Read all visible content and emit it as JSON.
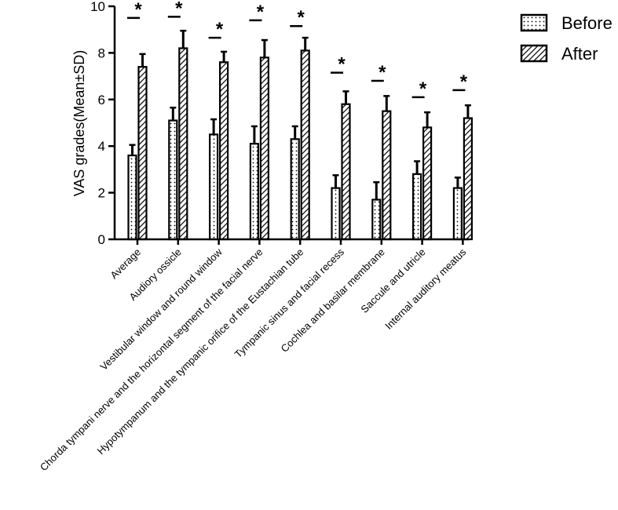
{
  "chart_data": {
    "type": "bar",
    "title": "",
    "xlabel": "",
    "ylabel": "VAS grades(Mean±SD)",
    "ylim": [
      0,
      10
    ],
    "yticks": [
      0,
      2,
      4,
      6,
      8,
      10
    ],
    "grid": false,
    "legend_placement": "top-right",
    "categories": [
      "Average",
      "Audiory ossicle",
      "Vestibular window and round window",
      "Chorda tympani nerve and the horizontal segment of the facial nerve",
      "Hypotympanum and the tympanic orifice of the Eustachian tube",
      "Tympanic sinus and facial recess",
      "Cochlea and basilar membrane",
      "Saccule and utricle",
      "Internal auditory meatus"
    ],
    "series": [
      {
        "name": "Before",
        "pattern": "dotted",
        "values": [
          3.6,
          5.1,
          4.5,
          4.1,
          4.3,
          2.2,
          1.7,
          2.8,
          2.2
        ],
        "sd": [
          0.45,
          0.55,
          0.65,
          0.75,
          0.55,
          0.55,
          0.75,
          0.55,
          0.45
        ]
      },
      {
        "name": "After",
        "pattern": "hatched",
        "values": [
          7.4,
          8.2,
          7.6,
          7.8,
          8.1,
          5.8,
          5.5,
          4.8,
          5.2
        ],
        "sd": [
          0.55,
          0.75,
          0.45,
          0.75,
          0.55,
          0.55,
          0.65,
          0.65,
          0.55
        ]
      }
    ],
    "significance": {
      "marker": "*",
      "levels": [
        9.5,
        9.55,
        8.65,
        9.4,
        9.15,
        7.15,
        6.8,
        6.1,
        6.4
      ]
    },
    "colors": {
      "bar_stroke": "#000000",
      "bar_fill": "#ffffff",
      "axis": "#000000"
    }
  }
}
